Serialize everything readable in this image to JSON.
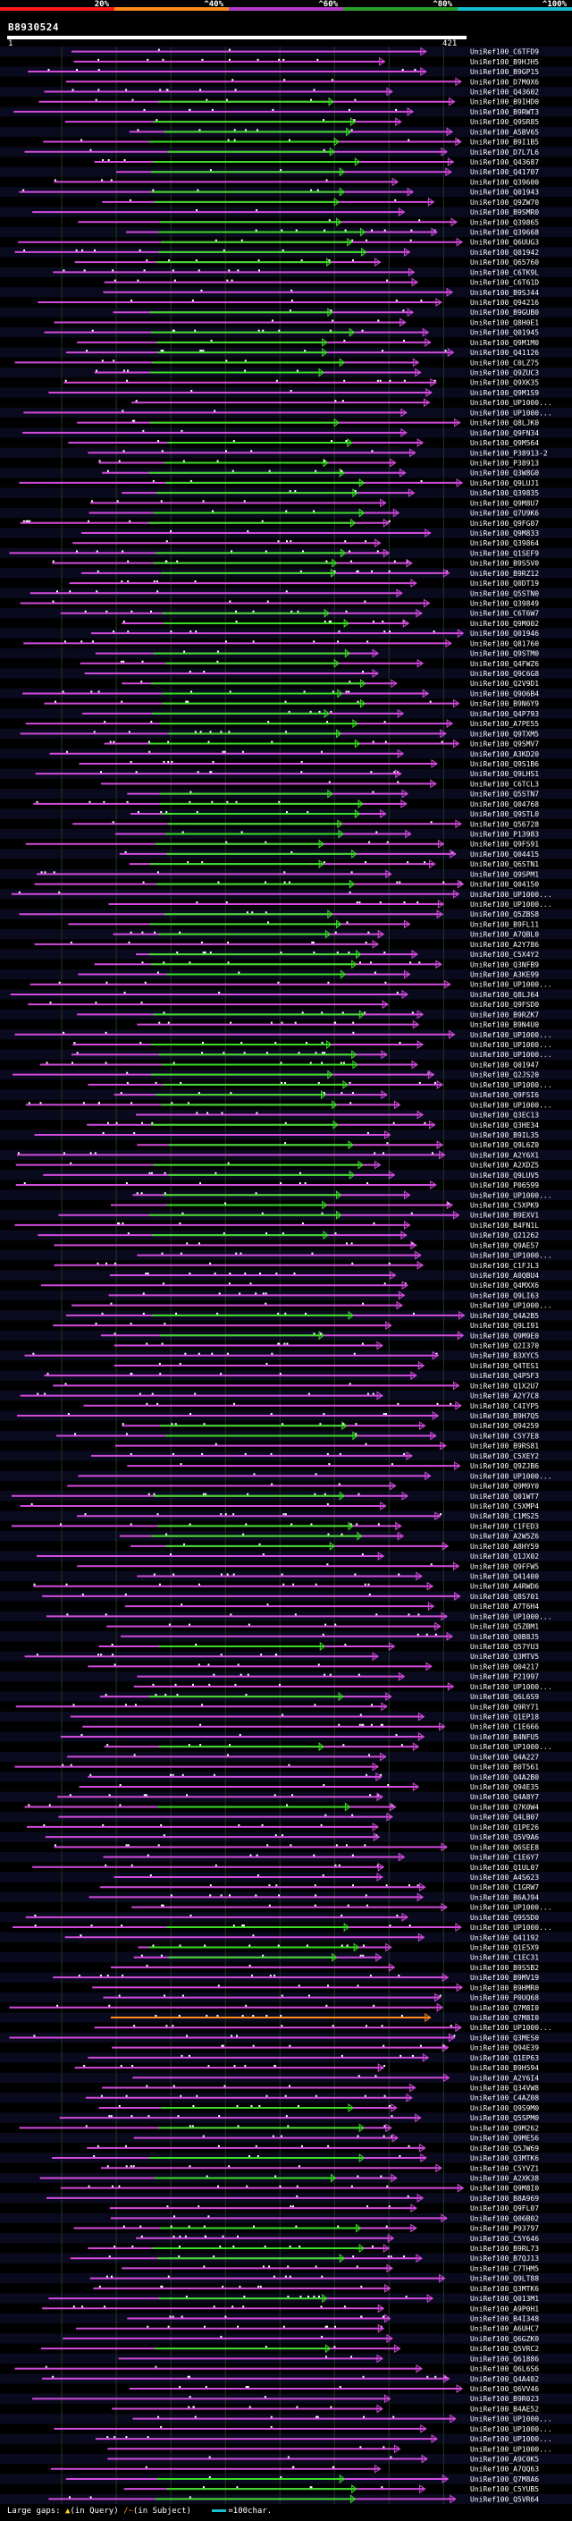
{
  "scale": {
    "labels": [
      "20%",
      "^40%",
      "^60%",
      "^80%",
      "^100%"
    ],
    "colors": [
      "#ff1a1a",
      "#ff8c1a",
      "#b43cc8",
      "#2aa02a",
      "#17bed2"
    ]
  },
  "query": {
    "id": "B8930524",
    "start": "1",
    "end": "421"
  },
  "colors": {
    "hit_magenta": "#d24bdc",
    "hit_green": "#3cdc28",
    "hit_orange": "#ff8c1a",
    "gap_tick": "#ffffff",
    "grid": "#1e3a1e",
    "stripe": "#0a0a1e"
  },
  "hits": [
    "UniRef100_C6TFD9",
    "UniRef100_B9HJH5",
    "UniRef100_B9GP15",
    "UniRef100_D7M0X6",
    "UniRef100_Q43602",
    "UniRef100_B9IHD0",
    "UniRef100_B9RWT3",
    "UniRef100_Q9SR85",
    "UniRef100_A5BV65",
    "UniRef100_B9I1B5",
    "UniRef100_D7L7L6",
    "UniRef100_Q43687",
    "UniRef100_Q41707",
    "UniRef100_Q39600",
    "UniRef100_Q01943",
    "UniRef100_Q9ZW70",
    "UniRef100_B9SMR0",
    "UniRef100_Q39865",
    "UniRef100_Q39668",
    "UniRef100_Q6UUG3",
    "UniRef100_Q01942",
    "UniRef100_Q65760",
    "UniRef100_C6TK9L",
    "UniRef100_C6T61D",
    "UniRef100_B9SJ44",
    "UniRef100_Q94216",
    "UniRef100_B9GUB0",
    "UniRef100_Q8H0E1",
    "UniRef100_Q01945",
    "UniRef100_Q9M1M0",
    "UniRef100_Q41126",
    "UniRef100_C0LZ75",
    "UniRef100_Q9ZUC3",
    "UniRef100_Q9XK35",
    "UniRef100_Q9M1S9",
    "UniRef100_UP1000...",
    "UniRef100_UP1000...",
    "UniRef100_Q8LJK0",
    "UniRef100_Q9FN34",
    "UniRef100_Q9M564",
    "UniRef100_P38913-2",
    "UniRef100_P38913",
    "UniRef100_Q3W8G0",
    "UniRef100_Q9LUJ1",
    "UniRef100_Q39835",
    "UniRef100_Q9M8U7",
    "UniRef100_Q7U9K6",
    "UniRef100_Q9FG07",
    "UniRef100_Q9M833",
    "UniRef100_Q39864",
    "UniRef100_Q1SEF9",
    "UniRef100_B9S5V0",
    "UniRef100_B9RZ12",
    "UniRef100_Q0DT19",
    "UniRef100_Q5STN0",
    "UniRef100_Q39849",
    "UniRef100_C6T6W7",
    "UniRef100_Q9M002",
    "UniRef100_Q01946",
    "UniRef100_Q81760",
    "UniRef100_Q9STM0",
    "UniRef100_Q4FWZ6",
    "UniRef100_Q9C6G8",
    "UniRef100_Q2V9D1",
    "UniRef100_Q9O6B4",
    "UniRef100_B9N6Y9",
    "UniRef100_Q4P793",
    "UniRef100_A7PE55",
    "UniRef100_Q9TXM5",
    "UniRef100_Q9SMV7",
    "UniRef100_A3KD20",
    "UniRef100_Q9S1B6",
    "UniRef100_Q9LHS1",
    "UniRef100_C6TCL3",
    "UniRef100_Q5STN7",
    "UniRef100_Q04768",
    "UniRef100_Q9STL0",
    "UniRef100_Q56728",
    "UniRef100_P13983",
    "UniRef100_Q9FS91",
    "UniRef100_Q04415",
    "UniRef100_Q6STN1",
    "UniRef100_Q9SPM1",
    "UniRef100_Q04150",
    "UniRef100_UP1000...",
    "UniRef100_UP1000...",
    "UniRef100_Q5ZBS8",
    "UniRef100_B9FL11",
    "UniRef100_A7QBL0",
    "UniRef100_A2Y786",
    "UniRef100_C5X4Y2",
    "UniRef100_Q3NFB9",
    "UniRef100_A3KE99",
    "UniRef100_UP1000...",
    "UniRef100_Q8LJ64",
    "UniRef100_Q9FSD0",
    "UniRef100_B9RZK7",
    "UniRef100_B9N4U0",
    "UniRef100_UP1000...",
    "UniRef100_UP1000...",
    "UniRef100_UP1000...",
    "UniRef100_Q01947",
    "UniRef100_Q2JS20",
    "UniRef100_UP1000...",
    "UniRef100_Q9FSI6",
    "UniRef100_UP1000...",
    "UniRef100_Q3EC13",
    "UniRef100_Q3HE34",
    "UniRef100_B9IL35",
    "UniRef100_Q9L6Z0",
    "UniRef100_A2Y6X1",
    "UniRef100_A2XDZ5",
    "UniRef100_Q9LUV5",
    "UniRef100_P06599",
    "UniRef100_UP1000...",
    "UniRef100_C5XPK9",
    "UniRef100_B9EXV1",
    "UniRef100_B4FN1L",
    "UniRef100_Q21262",
    "UniRef100_Q9AE57",
    "UniRef100_UP1000...",
    "UniRef100_C1FJL3",
    "UniRef100_A0QBU4",
    "UniRef100_Q4MXX6",
    "UniRef100_Q9LI63",
    "UniRef100_UP1000...",
    "UniRef100_Q4A2B5",
    "UniRef100_Q9LI91",
    "UniRef100_Q9M9E0",
    "UniRef100_Q2I370",
    "UniRef100_B3XYC5",
    "UniRef100_Q4TES1",
    "UniRef100_Q4P5F3",
    "UniRef100_Q1X2U7",
    "UniRef100_A2Y7C8",
    "UniRef100_C4IYP5",
    "UniRef100_B9H7Q5",
    "UniRef100_Q94259",
    "UniRef100_C5Y7E8",
    "UniRef100_B9RS81",
    "UniRef100_C5XEY2",
    "UniRef100_Q9ZJB6",
    "UniRef100_UP1000...",
    "UniRef100_Q9M9Y0",
    "UniRef100_Q01WT7",
    "UniRef100_C5XMP4",
    "UniRef100_C1MS25",
    "UniRef100_C1FED3",
    "UniRef100_A2W5Z6",
    "UniRef100_A8HY59",
    "UniRef100_Q1JX02",
    "UniRef100_Q9FFW5",
    "UniRef100_Q41400",
    "UniRef100_A4RWD6",
    "UniRef100_Q8S701",
    "UniRef100_A7T6H4",
    "UniRef100_UP1000...",
    "UniRef100_Q5ZBM1",
    "UniRef100_Q0B8J5",
    "UniRef100_Q57YU3",
    "UniRef100_Q3MTV5",
    "UniRef100_Q04217",
    "UniRef100_P21997",
    "UniRef100_UP1000...",
    "UniRef100_Q6L6S9",
    "UniRef100_Q9RY71",
    "UniRef100_Q1EP18",
    "UniRef100_C1E666",
    "UniRef100_B4NFU5",
    "UniRef100_UP1000...",
    "UniRef100_Q4A227",
    "UniRef100_B0T561",
    "UniRef100_Q4A2B0",
    "UniRef100_Q94E35",
    "UniRef100_Q4A8Y7",
    "UniRef100_Q7K0W4",
    "UniRef100_Q4LB07",
    "UniRef100_Q1PE26",
    "UniRef100_Q5V9A6",
    "UniRef100_Q6SEE8",
    "UniRef100_C1E6Y7",
    "UniRef100_Q1UL07",
    "UniRef100_A4S623",
    "UniRef100_C1GRW7",
    "UniRef100_B6AJ94",
    "UniRef100_UP1000...",
    "UniRef100_Q9S5D0",
    "UniRef100_UP1000...",
    "UniRef100_Q41192",
    "UniRef100_Q1E5X9",
    "UniRef100_C1EC31",
    "UniRef100_B9S5B2",
    "UniRef100_B9MV19",
    "UniRef100_B9HMR0",
    "UniRef100_P0UQ68",
    "UniRef100_Q7M8I0",
    "UniRef100_Q7M8I0",
    "UniRef100_UP1000...",
    "UniRef100_Q3MES0",
    "UniRef100_Q94E39",
    "UniRef100_Q1EP63",
    "UniRef100_B9H594",
    "UniRef100_A2Y6I4",
    "UniRef100_Q34VW8",
    "UniRef100_C4AZ08",
    "UniRef100_Q9S9M0",
    "UniRef100_Q5SPM0",
    "UniRef100_Q9M262",
    "UniRef100_Q9ME56",
    "UniRef100_Q5JW69",
    "UniRef100_Q3MTK6",
    "UniRef100_C5YVZ1",
    "UniRef100_A2XK38",
    "UniRef100_Q9M8I0",
    "UniRef100_B8A969",
    "UniRef100_Q9FL07",
    "UniRef100_Q06B02",
    "UniRef100_P93797",
    "UniRef100_C5Y646",
    "UniRef100_B9RL73",
    "UniRef100_B7QJ13",
    "UniRef100_C7THM5",
    "UniRef100_Q9LT88",
    "UniRef100_Q3MTK6",
    "UniRef100_Q013M1",
    "UniRef100_A9P0H1",
    "UniRef100_B4I348",
    "UniRef100_A6UHC7",
    "UniRef100_Q6GZK0",
    "UniRef100_Q5VRC2",
    "UniRef100_Q61886",
    "UniRef100_Q6L6S6",
    "UniRef100_Q4A402",
    "UniRef100_Q6VV46",
    "UniRef100_B9R023",
    "UniRef100_B4AE52",
    "UniRef100_UP1000...",
    "UniRef100_UP1000...",
    "UniRef100_UP1000...",
    "UniRef100_UP1000...",
    "UniRef100_A9C0K5",
    "UniRef100_A7QQ63",
    "UniRef100_Q7M8A6",
    "UniRef100_C5YUB5",
    "UniRef100_Q5VR64"
  ],
  "footer": {
    "gaps_label": "Large gaps:",
    "query_gap": "(in Query)",
    "subject_gap": "(in Subject)",
    "legend": "=100char."
  }
}
